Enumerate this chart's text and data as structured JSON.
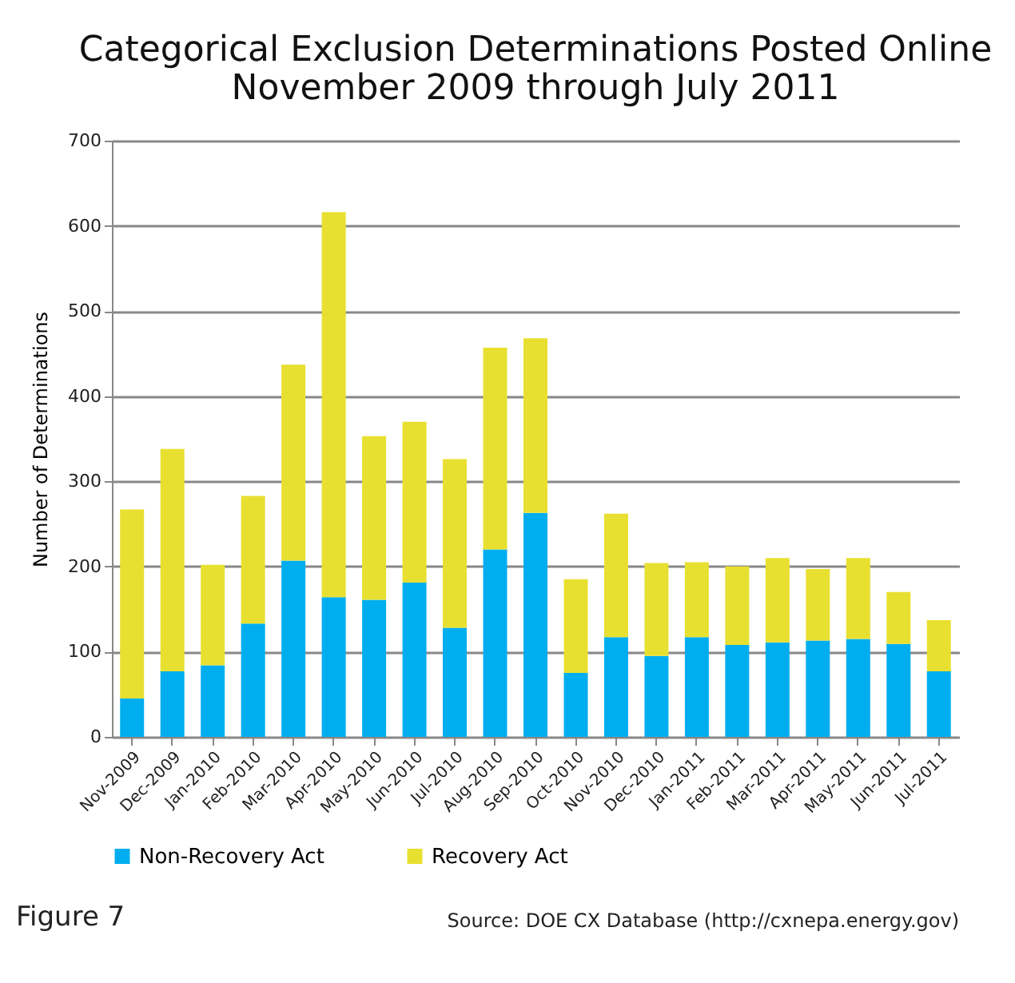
{
  "chart_data": {
    "type": "bar",
    "stacked": true,
    "title": [
      "Categorical Exclusion Determinations Posted Online",
      "November 2009 through July 2011"
    ],
    "ylabel": "Number of Determinations",
    "categories": [
      "Nov-2009",
      "Dec-2009",
      "Jan-2010",
      "Feb-2010",
      "Mar-2010",
      "Apr-2010",
      "May-2010",
      "Jun-2010",
      "Jul-2010",
      "Aug-2010",
      "Sep-2010",
      "Oct-2010",
      "Nov-2010",
      "Dec-2010",
      "Jan-2011",
      "Feb-2011",
      "Mar-2011",
      "Apr-2011",
      "May-2011",
      "Jun-2011",
      "Jul-2011"
    ],
    "series": [
      {
        "name": "Non-Recovery Act",
        "color": "#00aeef",
        "values": [
          45,
          77,
          84,
          133,
          207,
          164,
          161,
          181,
          128,
          220,
          263,
          75,
          117,
          95,
          117,
          108,
          111,
          113,
          115,
          109,
          77
        ]
      },
      {
        "name": "Recovery Act",
        "color": "#e8e030",
        "values": [
          222,
          261,
          118,
          150,
          230,
          452,
          192,
          189,
          198,
          237,
          205,
          110,
          145,
          109,
          88,
          92,
          99,
          84,
          95,
          61,
          60
        ]
      }
    ],
    "ylim": [
      0,
      700
    ],
    "yticks": [
      0,
      100,
      200,
      300,
      400,
      500,
      600,
      700
    ],
    "grid": "y",
    "legend": "bottom",
    "annotations": [
      "Figure 7",
      "Source: DOE CX Database (http://cxnepa.energy.gov)"
    ]
  }
}
